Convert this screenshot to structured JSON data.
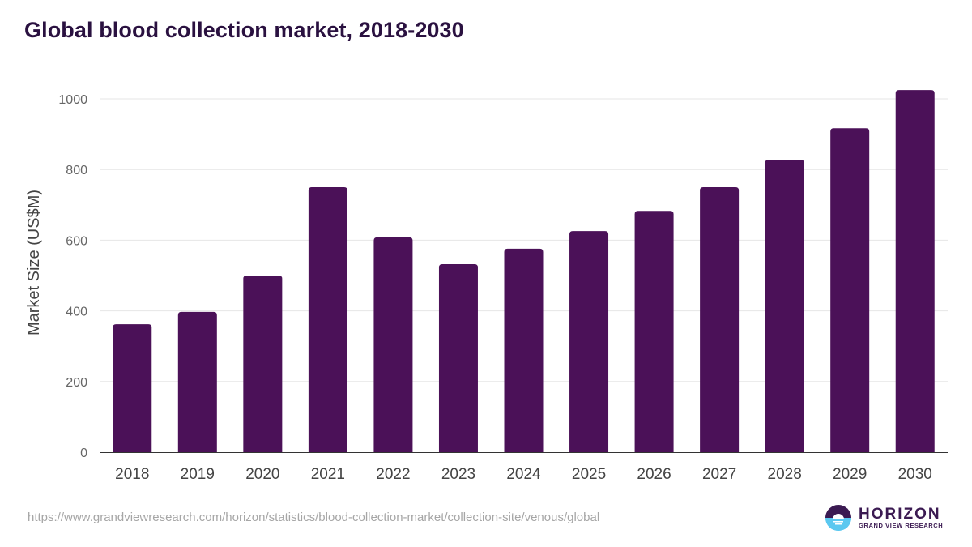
{
  "title": "Global blood collection market, 2018-2030",
  "source_url": "https://www.grandviewresearch.com/horizon/statistics/blood-collection-market/collection-site/venous/global",
  "logo": {
    "name": "HORIZON",
    "subtitle": "GRAND VIEW RESEARCH"
  },
  "colors": {
    "bar": "#4b1158",
    "title": "#2a1140",
    "grid": "#e6e6e6",
    "axis": "#333333",
    "tick_text": "#666666",
    "logo_dark": "#3b1a52",
    "logo_light": "#5bc8f0"
  },
  "chart_data": {
    "type": "bar",
    "title": "Global blood collection market, 2018-2030",
    "xlabel": "",
    "ylabel": "Market Size (US$M)",
    "categories": [
      "2018",
      "2019",
      "2020",
      "2021",
      "2022",
      "2023",
      "2024",
      "2025",
      "2026",
      "2027",
      "2028",
      "2029",
      "2030"
    ],
    "values": [
      362,
      397,
      500,
      750,
      608,
      532,
      576,
      626,
      683,
      750,
      828,
      917,
      1025
    ],
    "ylim": [
      0,
      1050
    ],
    "yticks": [
      0,
      200,
      400,
      600,
      800,
      1000
    ],
    "grid": true,
    "legend": "none"
  }
}
